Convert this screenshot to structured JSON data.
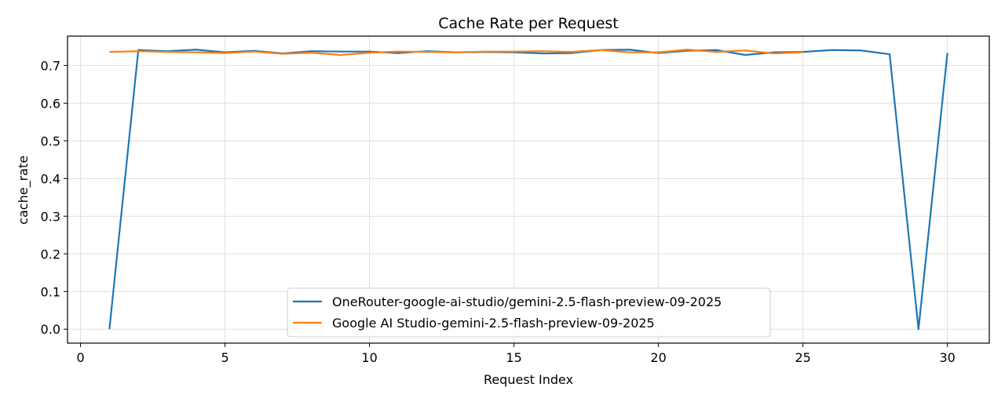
{
  "chart_data": {
    "type": "line",
    "title": "Cache Rate per Request",
    "xlabel": "Request Index",
    "ylabel": "cache_rate",
    "xlim": [
      -0.45,
      31.45
    ],
    "ylim": [
      -0.037,
      0.778
    ],
    "xticks": [
      0,
      5,
      10,
      15,
      20,
      25,
      30
    ],
    "yticks": [
      0.0,
      0.1,
      0.2,
      0.3,
      0.4,
      0.5,
      0.6,
      0.7
    ],
    "grid": true,
    "legend_position": "lower-center",
    "series": [
      {
        "name": "OneRouter-google-ai-studio/gemini-2.5-flash-preview-09-2025",
        "color": "#1f77b4",
        "x": [
          1,
          2,
          3,
          4,
          5,
          6,
          7,
          8,
          9,
          10,
          11,
          12,
          13,
          14,
          15,
          16,
          17,
          18,
          19,
          20,
          21,
          22,
          23,
          24,
          25,
          26,
          27,
          28,
          29,
          30
        ],
        "y": [
          0.0,
          0.741,
          0.738,
          0.742,
          0.735,
          0.739,
          0.732,
          0.738,
          0.737,
          0.737,
          0.733,
          0.738,
          0.735,
          0.736,
          0.735,
          0.732,
          0.733,
          0.741,
          0.742,
          0.733,
          0.739,
          0.741,
          0.728,
          0.735,
          0.736,
          0.741,
          0.74,
          0.73,
          0.0,
          0.733
        ]
      },
      {
        "name": "Google AI Studio-gemini-2.5-flash-preview-09-2025",
        "color": "#ff7f0e",
        "x": [
          1,
          2,
          3,
          4,
          5,
          6,
          7,
          8,
          9,
          10,
          11,
          12,
          13,
          14,
          15,
          16,
          17,
          18,
          19,
          20,
          21,
          22,
          23,
          24,
          25
        ],
        "y": [
          0.736,
          0.738,
          0.736,
          0.735,
          0.733,
          0.737,
          0.731,
          0.734,
          0.728,
          0.734,
          0.737,
          0.736,
          0.735,
          0.737,
          0.737,
          0.738,
          0.736,
          0.741,
          0.735,
          0.735,
          0.742,
          0.736,
          0.74,
          0.732,
          0.735
        ]
      }
    ]
  }
}
